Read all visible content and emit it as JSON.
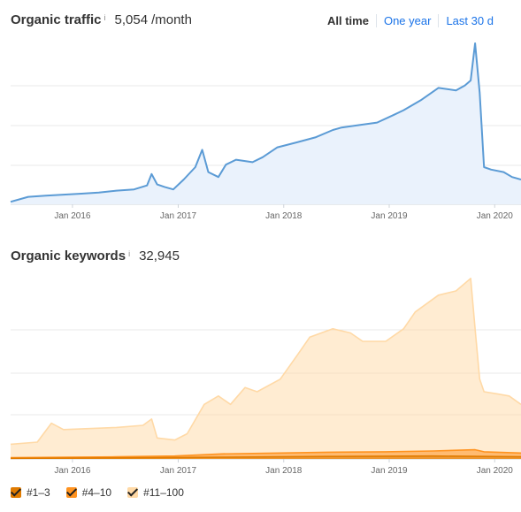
{
  "traffic": {
    "title": "Organic traffic",
    "info": "i",
    "value": "5,054",
    "unit": "/month"
  },
  "tabs": [
    {
      "label": "All time",
      "active": true
    },
    {
      "label": "One year",
      "active": false
    },
    {
      "label": "Last 30 d",
      "active": false
    }
  ],
  "keywords": {
    "title": "Organic keywords",
    "info": "i",
    "value": "32,945"
  },
  "legend": [
    {
      "label": "#1–3",
      "color": "#e07b00"
    },
    {
      "label": "#4–10",
      "color": "#ff9320"
    },
    {
      "label": "#11–100",
      "color": "#ffd9a6"
    }
  ],
  "chart_data": [
    {
      "type": "area",
      "title": "Organic traffic",
      "x_axis": "time",
      "x_ticks": [
        "Jan 2016",
        "Jan 2017",
        "Jan 2018",
        "Jan 2019",
        "Jan 2020"
      ],
      "ylim": [
        0,
        6500
      ],
      "grid": true,
      "color": "#5b9bd5",
      "series": [
        {
          "x": [
            "2015-06-01",
            "2015-08-01",
            "2015-10-01",
            "2015-12-01",
            "2016-02-01",
            "2016-04-01",
            "2016-06-01",
            "2016-08-01",
            "2016-09-15",
            "2016-10-01",
            "2016-10-20",
            "2016-11-15",
            "2016-12-15",
            "2017-01-20",
            "2017-03-01",
            "2017-03-25",
            "2017-04-15",
            "2017-05-20",
            "2017-06-15",
            "2017-07-20",
            "2017-09-15",
            "2017-10-20",
            "2017-12-10",
            "2018-02-15",
            "2018-04-20",
            "2018-06-20",
            "2018-07-20",
            "2018-09-20",
            "2018-11-20",
            "2019-01-15",
            "2019-02-20",
            "2019-04-20",
            "2019-06-20",
            "2019-08-20",
            "2019-09-20",
            "2019-10-10",
            "2019-10-25",
            "2019-11-10",
            "2019-11-25",
            "2019-12-20",
            "2020-02-01",
            "2020-03-01",
            "2020-04-01"
          ],
          "y": [
            100,
            300,
            350,
            390,
            430,
            470,
            550,
            600,
            760,
            1220,
            800,
            700,
            600,
            1000,
            1500,
            2200,
            1300,
            1100,
            1600,
            1800,
            1700,
            1900,
            2300,
            2500,
            2700,
            3000,
            3100,
            3200,
            3300,
            3600,
            3800,
            4200,
            4700,
            4600,
            4800,
            5000,
            6500,
            4500,
            1500,
            1400,
            1300,
            1100,
            1000
          ]
        }
      ]
    },
    {
      "type": "area",
      "title": "Organic keywords",
      "x_axis": "time",
      "x_ticks": [
        "Jan 2016",
        "Jan 2017",
        "Jan 2018",
        "Jan 2019",
        "Jan 2020"
      ],
      "ylim": [
        0,
        44000
      ],
      "grid": true,
      "series": [
        {
          "name": "#11–100",
          "color": "#ffd9a6",
          "x": [
            "2015-06-01",
            "2015-09-01",
            "2015-10-20",
            "2015-12-01",
            "2016-06-01",
            "2016-09-01",
            "2016-10-01",
            "2016-10-20",
            "2016-12-20",
            "2017-02-01",
            "2017-04-01",
            "2017-05-20",
            "2017-07-01",
            "2017-08-20",
            "2017-10-01",
            "2017-12-20",
            "2018-02-20",
            "2018-04-01",
            "2018-06-20",
            "2018-08-20",
            "2018-10-01",
            "2018-12-20",
            "2019-02-20",
            "2019-04-01",
            "2019-06-20",
            "2019-08-20",
            "2019-10-10",
            "2019-10-25",
            "2019-11-10",
            "2019-11-25",
            "2020-01-10",
            "2020-02-20",
            "2020-04-01"
          ],
          "y": [
            3500,
            4000,
            8500,
            7000,
            7500,
            8000,
            9500,
            5000,
            4500,
            6000,
            13000,
            15000,
            13000,
            17000,
            16000,
            19000,
            25000,
            29000,
            31000,
            30000,
            28000,
            28000,
            31000,
            35000,
            39000,
            40000,
            43000,
            31000,
            19000,
            16000,
            15500,
            15000,
            13000
          ]
        },
        {
          "name": "#4–10",
          "color": "#ff9320",
          "x": [
            "2015-06-01",
            "2016-06-01",
            "2016-12-20",
            "2017-06-01",
            "2017-12-20",
            "2018-06-01",
            "2018-12-20",
            "2019-06-01",
            "2019-10-25",
            "2019-11-25",
            "2020-04-01"
          ],
          "y": [
            300,
            500,
            700,
            1200,
            1400,
            1600,
            1700,
            1900,
            2200,
            1700,
            1400
          ]
        },
        {
          "name": "#1–3",
          "color": "#e07b00",
          "x": [
            "2015-06-01",
            "2016-06-01",
            "2017-06-01",
            "2018-06-01",
            "2019-06-01",
            "2019-11-25",
            "2020-04-01"
          ],
          "y": [
            150,
            250,
            400,
            600,
            700,
            600,
            500
          ]
        }
      ]
    }
  ]
}
